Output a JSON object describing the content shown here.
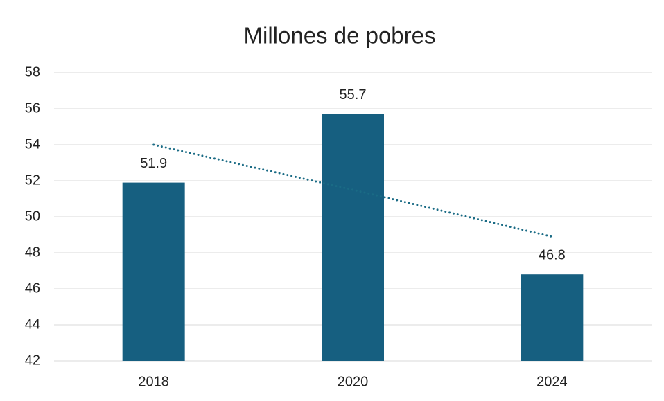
{
  "chart_data": {
    "type": "bar",
    "title": "Millones de pobres",
    "categories": [
      "2018",
      "2020",
      "2024"
    ],
    "values": [
      51.9,
      55.7,
      46.8
    ],
    "color": "#165f80",
    "ylim": [
      42,
      58
    ],
    "yticks": [
      42,
      44,
      46,
      48,
      50,
      52,
      54,
      56,
      58
    ],
    "grid": true,
    "trendline": {
      "values": [
        54.0,
        51.5,
        48.9
      ],
      "color": "#1a6b85"
    }
  }
}
